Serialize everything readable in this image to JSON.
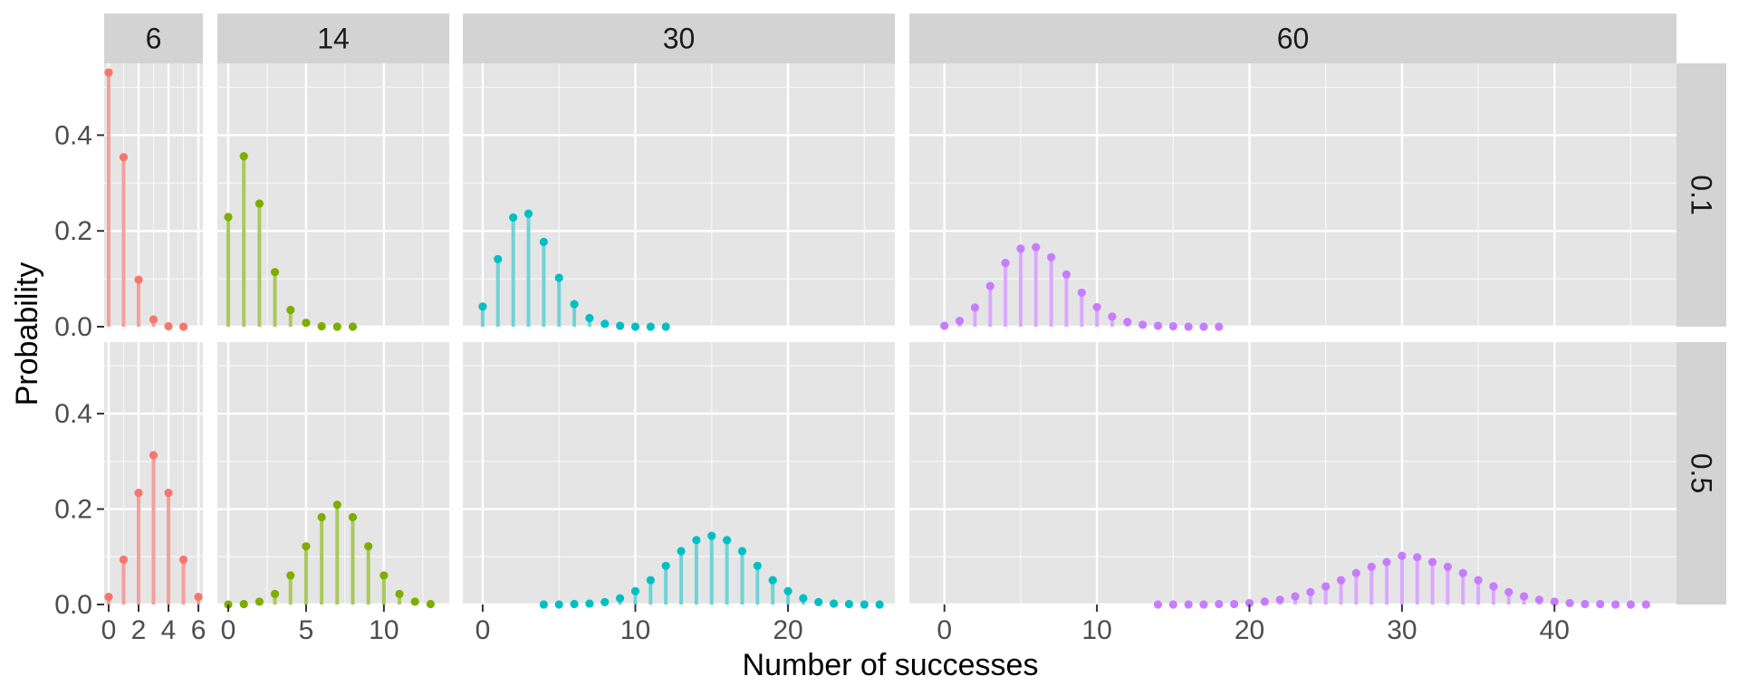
{
  "chart_data": {
    "type": "lollipop",
    "layout": "facet_grid",
    "xlabel": "Number of successes",
    "ylabel": "Probability",
    "ylim": [
      0,
      0.55
    ],
    "yticks": [
      {
        "value": 0.0,
        "label": "0.0"
      },
      {
        "value": 0.2,
        "label": "0.2"
      },
      {
        "value": 0.4,
        "label": "0.4"
      }
    ],
    "columns": [
      {
        "name": "6",
        "n": 6,
        "xlim": [
          -0.3,
          6.3
        ],
        "xticks": [
          0,
          2,
          4,
          6
        ],
        "color": "#F8766D",
        "stem_color": "#F4A09A"
      },
      {
        "name": "14",
        "n": 14,
        "xlim": [
          -0.7,
          14.2
        ],
        "xticks": [
          0,
          5,
          10
        ],
        "color": "#7CAE00",
        "stem_color": "#A9C95C"
      },
      {
        "name": "30",
        "n": 30,
        "xlim": [
          -1.3,
          27.0
        ],
        "xticks": [
          0,
          10,
          20
        ],
        "color": "#00BFC4",
        "stem_color": "#6FD3D6"
      },
      {
        "name": "60",
        "n": 60,
        "xlim": [
          -2.3,
          48.0
        ],
        "xticks": [
          0,
          10,
          20,
          30,
          40
        ],
        "color": "#C77CFF",
        "stem_color": "#DAA8FF"
      }
    ],
    "rows": [
      {
        "name": "0.1",
        "p": 0.1
      },
      {
        "name": "0.5",
        "p": 0.5
      }
    ],
    "panels": [
      {
        "col": 0,
        "row": 0,
        "x": [
          0,
          1,
          2,
          3,
          4,
          5
        ],
        "y": [
          0.531,
          0.354,
          0.098,
          0.015,
          0.001,
          0.0
        ]
      },
      {
        "col": 0,
        "row": 1,
        "x": [
          0,
          1,
          2,
          3,
          4,
          5,
          6
        ],
        "y": [
          0.016,
          0.094,
          0.234,
          0.313,
          0.234,
          0.094,
          0.016
        ]
      },
      {
        "col": 1,
        "row": 0,
        "x": [
          0,
          1,
          2,
          3,
          4,
          5,
          6,
          7,
          8
        ],
        "y": [
          0.229,
          0.356,
          0.257,
          0.114,
          0.035,
          0.008,
          0.001,
          0.0,
          0.0
        ]
      },
      {
        "col": 1,
        "row": 1,
        "x": [
          0,
          1,
          2,
          3,
          4,
          5,
          6,
          7,
          8,
          9,
          10,
          11,
          12,
          13
        ],
        "y": [
          0.0,
          0.001,
          0.006,
          0.022,
          0.061,
          0.122,
          0.183,
          0.209,
          0.183,
          0.122,
          0.061,
          0.022,
          0.006,
          0.001
        ]
      },
      {
        "col": 2,
        "row": 0,
        "x": [
          0,
          1,
          2,
          3,
          4,
          5,
          6,
          7,
          8,
          9,
          10,
          11,
          12
        ],
        "y": [
          0.042,
          0.141,
          0.228,
          0.236,
          0.177,
          0.102,
          0.047,
          0.018,
          0.006,
          0.002,
          0.0,
          0.0,
          0.0
        ]
      },
      {
        "col": 2,
        "row": 1,
        "x": [
          4,
          5,
          6,
          7,
          8,
          9,
          10,
          11,
          12,
          13,
          14,
          15,
          16,
          17,
          18,
          19,
          20,
          21,
          22,
          23,
          24,
          25,
          26
        ],
        "y": [
          0.0,
          0.0,
          0.001,
          0.002,
          0.005,
          0.013,
          0.028,
          0.051,
          0.081,
          0.112,
          0.135,
          0.144,
          0.135,
          0.112,
          0.081,
          0.051,
          0.028,
          0.013,
          0.005,
          0.002,
          0.001,
          0.0,
          0.0
        ]
      },
      {
        "col": 3,
        "row": 0,
        "x": [
          0,
          1,
          2,
          3,
          4,
          5,
          6,
          7,
          8,
          9,
          10,
          11,
          12,
          13,
          14,
          15,
          16,
          17,
          18
        ],
        "y": [
          0.002,
          0.012,
          0.04,
          0.085,
          0.133,
          0.163,
          0.166,
          0.145,
          0.109,
          0.071,
          0.041,
          0.021,
          0.01,
          0.004,
          0.002,
          0.001,
          0.0,
          0.0,
          0.0
        ]
      },
      {
        "col": 3,
        "row": 1,
        "x": [
          14,
          15,
          16,
          17,
          18,
          19,
          20,
          21,
          22,
          23,
          24,
          25,
          26,
          27,
          28,
          29,
          30,
          31,
          32,
          33,
          34,
          35,
          36,
          37,
          38,
          39,
          40,
          41,
          42,
          43,
          44,
          45,
          46
        ],
        "y": [
          0.0,
          0.0,
          0.0,
          0.0,
          0.001,
          0.001,
          0.003,
          0.006,
          0.01,
          0.017,
          0.026,
          0.038,
          0.051,
          0.066,
          0.079,
          0.089,
          0.102,
          0.099,
          0.089,
          0.079,
          0.066,
          0.051,
          0.038,
          0.026,
          0.017,
          0.01,
          0.006,
          0.003,
          0.001,
          0.001,
          0.0,
          0.0,
          0.0
        ]
      }
    ],
    "colors": {
      "panel_bg": "#E5E5E5",
      "grid_major": "#FFFFFF",
      "strip_bg": "#D3D3D3"
    }
  }
}
